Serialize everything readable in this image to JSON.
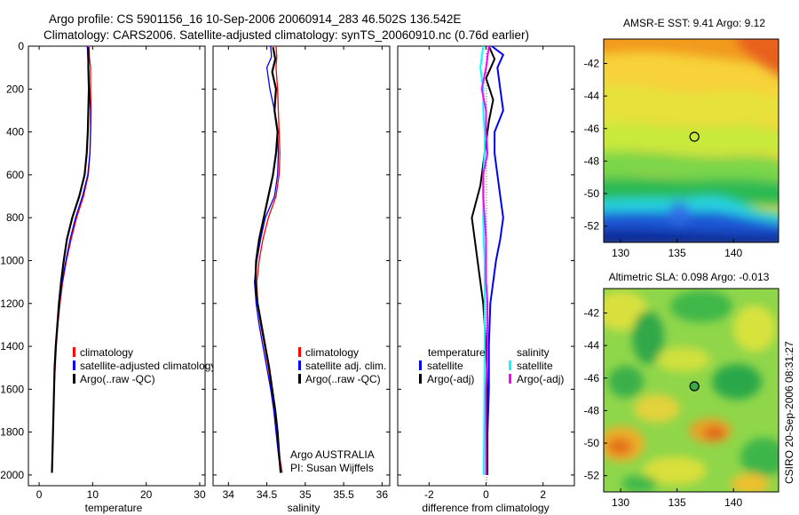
{
  "header": {
    "line1": "Argo profile: CS 5901156_16 10-Sep-2006 20060914_283 46.502S 136.542E",
    "line2": "Climatology: CARS2006. Satellite-adjusted climatology: synTS_20060910.nc (0.76d earlier)"
  },
  "side_label": "CSIRO 20-Sep-2006 08:31:27",
  "colors": {
    "red": "#ff0000",
    "blue": "#0000ff",
    "black": "#000000",
    "cyan": "#00ffff",
    "magenta": "#ff00ff"
  },
  "chart_data": [
    {
      "type": "line",
      "name": "temperature-profile",
      "xlabel": "temperature",
      "xlim": [
        -2,
        31
      ],
      "ylim": [
        0,
        2050
      ],
      "yreversed": true,
      "xticks": [
        "0",
        "10",
        "20",
        "30"
      ],
      "yticks": [
        "0",
        "200",
        "400",
        "600",
        "800",
        "1000",
        "1200",
        "1400",
        "1600",
        "1800",
        "2000"
      ],
      "legend": [
        "climatology",
        "satellite-adjusted climatology",
        "Argo(..raw -QC)"
      ],
      "series": [
        {
          "name": "climatology",
          "color": "red",
          "width": 1.3,
          "points": [
            [
              9.3,
              0
            ],
            [
              9.4,
              50
            ],
            [
              9.6,
              100
            ],
            [
              9.6,
              200
            ],
            [
              9.7,
              300
            ],
            [
              9.6,
              400
            ],
            [
              9.5,
              500
            ],
            [
              9.2,
              600
            ],
            [
              8.3,
              700
            ],
            [
              7.0,
              800
            ],
            [
              6.0,
              900
            ],
            [
              5.1,
              1000
            ],
            [
              4.4,
              1100
            ],
            [
              3.9,
              1200
            ],
            [
              3.5,
              1300
            ],
            [
              3.2,
              1400
            ],
            [
              3.0,
              1500
            ],
            [
              2.8,
              1600
            ],
            [
              2.7,
              1700
            ],
            [
              2.6,
              1800
            ],
            [
              2.5,
              1900
            ],
            [
              2.4,
              1990
            ]
          ]
        },
        {
          "name": "satellite-adjusted climatology",
          "color": "blue",
          "width": 1.3,
          "points": [
            [
              9.0,
              0
            ],
            [
              9.1,
              50
            ],
            [
              9.2,
              100
            ],
            [
              9.4,
              200
            ],
            [
              9.6,
              300
            ],
            [
              9.6,
              400
            ],
            [
              9.5,
              500
            ],
            [
              9.1,
              600
            ],
            [
              8.1,
              700
            ],
            [
              6.8,
              800
            ],
            [
              5.8,
              900
            ],
            [
              5.0,
              1000
            ],
            [
              4.3,
              1100
            ],
            [
              3.8,
              1200
            ],
            [
              3.4,
              1300
            ],
            [
              3.1,
              1400
            ],
            [
              2.9,
              1500
            ],
            [
              2.8,
              1600
            ],
            [
              2.7,
              1700
            ],
            [
              2.6,
              1800
            ],
            [
              2.5,
              1900
            ],
            [
              2.4,
              1990
            ]
          ]
        },
        {
          "name": "Argo(..raw -QC)",
          "color": "black",
          "width": 2.2,
          "points": [
            [
              9.2,
              5
            ],
            [
              9.2,
              100
            ],
            [
              9.3,
              200
            ],
            [
              9.2,
              300
            ],
            [
              9.1,
              400
            ],
            [
              8.9,
              500
            ],
            [
              8.5,
              600
            ],
            [
              7.5,
              700
            ],
            [
              6.2,
              800
            ],
            [
              5.2,
              900
            ],
            [
              4.6,
              1000
            ],
            [
              4.1,
              1100
            ],
            [
              3.7,
              1200
            ],
            [
              3.4,
              1300
            ],
            [
              3.1,
              1400
            ],
            [
              2.9,
              1500
            ],
            [
              2.8,
              1600
            ],
            [
              2.7,
              1700
            ],
            [
              2.6,
              1800
            ],
            [
              2.5,
              1900
            ],
            [
              2.4,
              1990
            ]
          ]
        }
      ]
    },
    {
      "type": "line",
      "name": "salinity-profile",
      "xlabel": "salinity",
      "xlim": [
        33.8,
        36.1
      ],
      "ylim": [
        0,
        2050
      ],
      "yreversed": true,
      "xticks": [
        "34",
        "34.5",
        "35",
        "35.5",
        "36"
      ],
      "legend": [
        "climatology",
        "satellite adj. clim.",
        "Argo(..raw -QC)"
      ],
      "annotation": [
        "Argo AUSTRALIA",
        "PI: Susan Wijffels"
      ],
      "series": [
        {
          "name": "climatology",
          "color": "red",
          "width": 1.3,
          "points": [
            [
              34.62,
              0
            ],
            [
              34.63,
              50
            ],
            [
              34.62,
              100
            ],
            [
              34.64,
              200
            ],
            [
              34.65,
              300
            ],
            [
              34.66,
              400
            ],
            [
              34.67,
              500
            ],
            [
              34.66,
              600
            ],
            [
              34.62,
              700
            ],
            [
              34.52,
              800
            ],
            [
              34.45,
              900
            ],
            [
              34.4,
              1000
            ],
            [
              34.37,
              1100
            ],
            [
              34.38,
              1200
            ],
            [
              34.42,
              1300
            ],
            [
              34.47,
              1400
            ],
            [
              34.52,
              1500
            ],
            [
              34.56,
              1600
            ],
            [
              34.6,
              1700
            ],
            [
              34.63,
              1800
            ],
            [
              34.66,
              1900
            ],
            [
              34.7,
              1990
            ]
          ]
        },
        {
          "name": "satellite adj. clim.",
          "color": "blue",
          "width": 1.3,
          "points": [
            [
              34.55,
              0
            ],
            [
              34.56,
              50
            ],
            [
              34.5,
              100
            ],
            [
              34.54,
              200
            ],
            [
              34.6,
              300
            ],
            [
              34.64,
              400
            ],
            [
              34.65,
              500
            ],
            [
              34.64,
              600
            ],
            [
              34.6,
              700
            ],
            [
              34.48,
              800
            ],
            [
              34.42,
              900
            ],
            [
              34.37,
              1000
            ],
            [
              34.34,
              1100
            ],
            [
              34.36,
              1200
            ],
            [
              34.4,
              1300
            ],
            [
              34.45,
              1400
            ],
            [
              34.5,
              1500
            ],
            [
              34.55,
              1600
            ],
            [
              34.59,
              1700
            ],
            [
              34.62,
              1800
            ],
            [
              34.65,
              1900
            ],
            [
              34.68,
              1990
            ]
          ]
        },
        {
          "name": "Argo(..raw -QC)",
          "color": "black",
          "width": 2.2,
          "points": [
            [
              34.58,
              5
            ],
            [
              34.61,
              60
            ],
            [
              34.57,
              120
            ],
            [
              34.62,
              200
            ],
            [
              34.6,
              300
            ],
            [
              34.64,
              400
            ],
            [
              34.62,
              500
            ],
            [
              34.58,
              600
            ],
            [
              34.52,
              700
            ],
            [
              34.46,
              800
            ],
            [
              34.4,
              900
            ],
            [
              34.36,
              1000
            ],
            [
              34.35,
              1100
            ],
            [
              34.38,
              1200
            ],
            [
              34.43,
              1300
            ],
            [
              34.48,
              1400
            ],
            [
              34.53,
              1500
            ],
            [
              34.57,
              1600
            ],
            [
              34.61,
              1700
            ],
            [
              34.64,
              1800
            ],
            [
              34.66,
              1900
            ],
            [
              34.68,
              1990
            ]
          ]
        }
      ]
    },
    {
      "type": "line",
      "name": "difference-profile",
      "xlabel": "difference from climatology",
      "xlim": [
        -3.1,
        3.1
      ],
      "ylim": [
        0,
        2050
      ],
      "yreversed": true,
      "xticks": [
        "-2",
        "0",
        "2"
      ],
      "legend_left": [
        "temperature",
        "satellite",
        "Argo(-adj)"
      ],
      "legend_right": [
        "salinity",
        "satellite",
        "Argo(-adj)"
      ],
      "series": [
        {
          "name": "temperature satellite",
          "color": "blue",
          "width": 2.0,
          "points": [
            [
              0.2,
              0
            ],
            [
              0.6,
              40
            ],
            [
              0.4,
              100
            ],
            [
              0.5,
              200
            ],
            [
              0.6,
              300
            ],
            [
              0.3,
              400
            ],
            [
              0.3,
              500
            ],
            [
              0.4,
              600
            ],
            [
              0.5,
              700
            ],
            [
              0.6,
              800
            ],
            [
              0.5,
              900
            ],
            [
              0.35,
              1000
            ],
            [
              0.25,
              1100
            ],
            [
              0.15,
              1200
            ],
            [
              0.1,
              1400
            ],
            [
              0.1,
              1600
            ],
            [
              0.05,
              1800
            ],
            [
              0.0,
              2000
            ]
          ]
        },
        {
          "name": "temperature Argo(-adj)",
          "color": "black",
          "width": 2.0,
          "points": [
            [
              0.1,
              0
            ],
            [
              0.3,
              60
            ],
            [
              0.0,
              150
            ],
            [
              0.25,
              250
            ],
            [
              0.1,
              350
            ],
            [
              0.0,
              450
            ],
            [
              -0.1,
              550
            ],
            [
              -0.2,
              650
            ],
            [
              -0.5,
              800
            ],
            [
              -0.4,
              900
            ],
            [
              -0.3,
              1000
            ],
            [
              -0.2,
              1100
            ],
            [
              -0.1,
              1200
            ],
            [
              0.0,
              1400
            ],
            [
              0.05,
              1600
            ],
            [
              0.05,
              1800
            ],
            [
              0.05,
              2000
            ]
          ]
        },
        {
          "name": "salinity satellite",
          "color": "cyan",
          "width": 2.0,
          "points": [
            [
              -0.1,
              0
            ],
            [
              -0.2,
              100
            ],
            [
              -0.1,
              200
            ],
            [
              -0.1,
              300
            ],
            [
              -0.05,
              400
            ],
            [
              -0.05,
              500
            ],
            [
              -0.1,
              600
            ],
            [
              -0.1,
              700
            ],
            [
              -0.1,
              800
            ],
            [
              -0.08,
              900
            ],
            [
              -0.05,
              1000
            ],
            [
              -0.05,
              1100
            ],
            [
              -0.05,
              1200
            ],
            [
              -0.05,
              1400
            ],
            [
              -0.06,
              1600
            ],
            [
              -0.07,
              1800
            ],
            [
              -0.08,
              2000
            ]
          ]
        },
        {
          "name": "salinity Argo(-adj)",
          "color": "magenta",
          "width": 2.0,
          "points": [
            [
              0.1,
              0
            ],
            [
              0.0,
              100
            ],
            [
              -0.15,
              200
            ],
            [
              0.0,
              300
            ],
            [
              0.0,
              400
            ],
            [
              0.05,
              500
            ],
            [
              -0.1,
              600
            ],
            [
              -0.1,
              700
            ],
            [
              -0.05,
              800
            ],
            [
              0.0,
              900
            ],
            [
              0.0,
              1000
            ],
            [
              0.0,
              1100
            ],
            [
              0.05,
              1200
            ],
            [
              0.05,
              1300
            ],
            [
              0.05,
              1400
            ],
            [
              0.0,
              1600
            ],
            [
              0.0,
              1800
            ],
            [
              0.0,
              2000
            ]
          ]
        }
      ]
    },
    {
      "type": "heatmap",
      "name": "sst-map",
      "title": "AMSR-E SST: 9.41 Argo: 9.12",
      "xlim": [
        128.5,
        144.0
      ],
      "ylim": [
        -53,
        -40.5
      ],
      "xticks": [
        "130",
        "135",
        "140"
      ],
      "yticks": [
        "-42",
        "-44",
        "-46",
        "-48",
        "-50",
        "-52"
      ],
      "argo_position": [
        136.542,
        -46.502
      ]
    },
    {
      "type": "heatmap",
      "name": "sla-map",
      "title": "Altimetric SLA: 0.098 Argo: -0.013",
      "xlim": [
        128.5,
        144.0
      ],
      "ylim": [
        -53,
        -40.5
      ],
      "xticks": [
        "130",
        "135",
        "140"
      ],
      "yticks": [
        "-42",
        "-44",
        "-46",
        "-48",
        "-50",
        "-52"
      ],
      "argo_position": [
        136.542,
        -46.502
      ]
    }
  ]
}
